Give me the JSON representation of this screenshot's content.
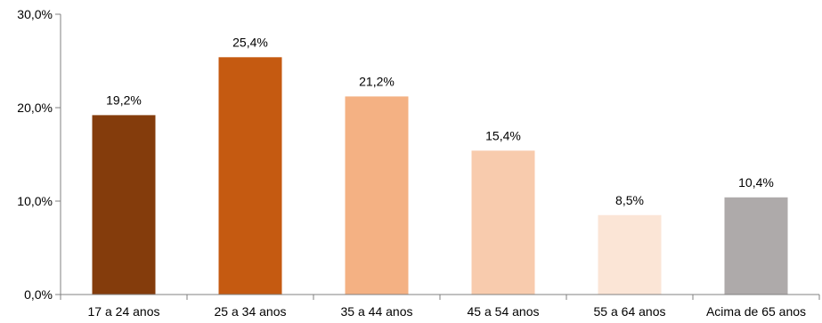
{
  "chart_data": {
    "type": "bar",
    "categories": [
      "17 a 24 anos",
      "25 a 34 anos",
      "35 a 44 anos",
      "45 a 54 anos",
      "55 a 64 anos",
      "Acima de 65 anos"
    ],
    "values": [
      19.2,
      25.4,
      21.2,
      15.4,
      8.5,
      10.4
    ],
    "data_labels": [
      "19,2%",
      "25,4%",
      "21,2%",
      "15,4%",
      "8,5%",
      "10,4%"
    ],
    "colors": [
      "#843C0C",
      "#C55A11",
      "#F4B183",
      "#F8CBAD",
      "#FBE5D6",
      "#AEAAAA"
    ],
    "ylim": [
      0,
      30
    ],
    "yticks": [
      0,
      10,
      20,
      30
    ],
    "ytick_labels": [
      "0,0%",
      "10,0%",
      "20,0%",
      "30,0%"
    ],
    "title": "",
    "xlabel": "",
    "ylabel": "",
    "grid": false,
    "legend": "none"
  }
}
